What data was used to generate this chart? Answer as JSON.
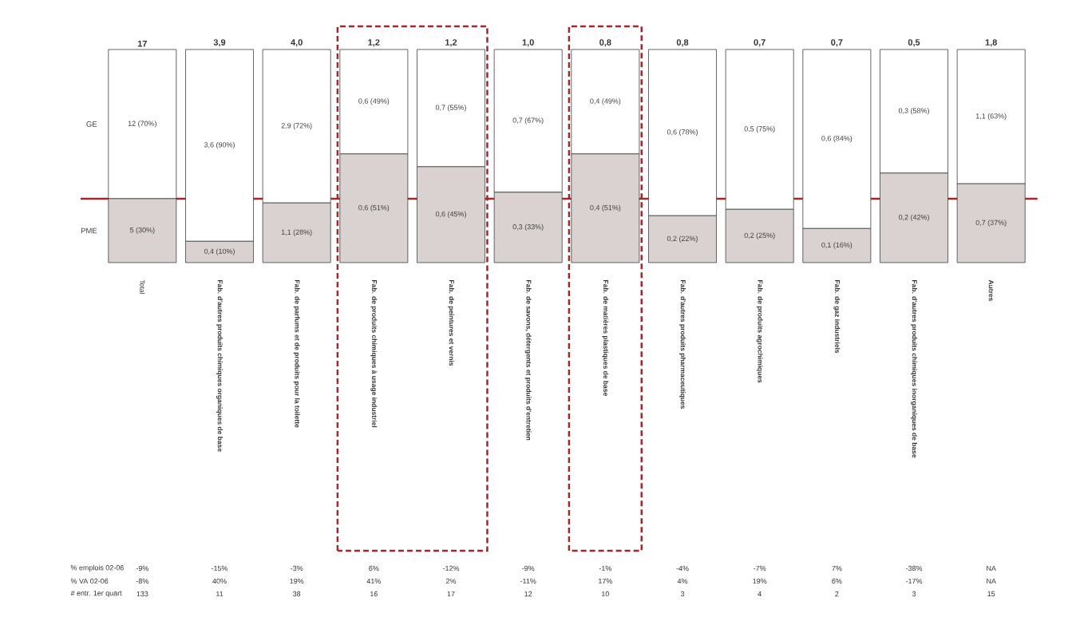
{
  "chart_data": {
    "type": "bar",
    "stacked": true,
    "categories": [
      "Total",
      "Fab. d'autres produits chimiques organiques de base",
      "Fab. de parfums et de produits pour la toilette",
      "Fab. de produits chimiques à usage industriel",
      "Fab. de peintures et vernis",
      "Fab. de savons, détergents et produits d'entretien",
      "Fab. de matières plastiques de base",
      "Fab. d'autres produits pharmaceutiques",
      "Fab. de produits agrochimiques",
      "Fab. de gaz industriels",
      "Fab. d'autres produits chimiques inorganiques de base",
      "Autres"
    ],
    "series": [
      {
        "name": "PME",
        "color": "#d9d2d0",
        "values": [
          30,
          10,
          28,
          51,
          45,
          33,
          51,
          22,
          25,
          16,
          42,
          37
        ],
        "value_labels": [
          "5 (30%)",
          "0,4 (10%)",
          "1,1 (28%)",
          "0,6 (51%)",
          "0,6 (45%)",
          "0,3 (33%)",
          "0,4 (51%)",
          "0,2 (22%)",
          "0,2 (25%)",
          "0,1 (16%)",
          "0,2 (42%)",
          "0,7 (37%)"
        ]
      },
      {
        "name": "GE",
        "color": "#ffffff",
        "values": [
          70,
          90,
          72,
          49,
          55,
          67,
          49,
          78,
          75,
          84,
          58,
          63
        ],
        "value_labels": [
          "12 (70%)",
          "3,6 (90%)",
          "2,9 (72%)",
          "0,6 (49%)",
          "0,7 (55%)",
          "0,7 (67%)",
          "0,4 (49%)",
          "0,6 (78%)",
          "0,5 (75%)",
          "0,6 (84%)",
          "0,3 (58%)",
          "1,1 (63%)"
        ]
      }
    ],
    "ref_lines": [
      {
        "axis": "y",
        "value": 30,
        "color": "#a0282d"
      }
    ],
    "annotations": [
      "17",
      "3,9",
      "4,0",
      "1,2",
      "1,2",
      "1,0",
      "0,8",
      "0,8",
      "0,7",
      "0,7",
      "0,5",
      "1,8",
      "% emplois 02-06",
      "-9%",
      "-15%",
      "-3%",
      "6%",
      "-12%",
      "-9%",
      "-1%",
      "-4%",
      "-7%",
      "7%",
      "-38%",
      "NA",
      "% VA 02-06",
      "-8%",
      "40%",
      "19%",
      "41%",
      "2%",
      "-11%",
      "17%",
      "4%",
      "19%",
      "6%",
      "-17%",
      "NA",
      "# entr. 1er quart",
      "133",
      "11",
      "38",
      "16",
      "17",
      "12",
      "10",
      "3",
      "4",
      "2",
      "3",
      "15"
    ]
  }
}
